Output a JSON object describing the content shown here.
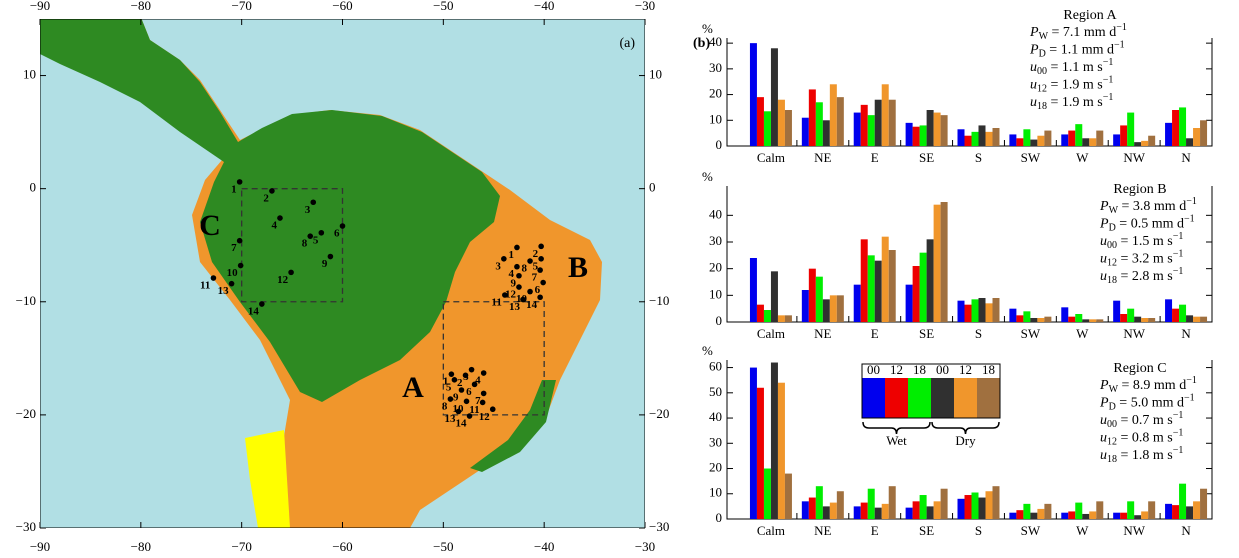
{
  "map": {
    "panel_label": "(a)",
    "xlim": [
      -90,
      -30
    ],
    "ylim": [
      -30,
      15
    ],
    "xticks": [
      {
        "value": -90,
        "label": "−90"
      },
      {
        "value": -80,
        "label": "−80"
      },
      {
        "value": -70,
        "label": "−70"
      },
      {
        "value": -60,
        "label": "−60"
      },
      {
        "value": -50,
        "label": "−50"
      },
      {
        "value": -40,
        "label": "−40"
      },
      {
        "value": -30,
        "label": "−30"
      }
    ],
    "yticks": [
      10,
      0,
      {
        "value": -10,
        "label": "−10"
      },
      {
        "value": -20,
        "label": "−20"
      },
      {
        "value": -30,
        "label": "−30"
      }
    ],
    "region_labels": [
      "A",
      "B",
      "C"
    ],
    "boxes": [
      {
        "lon": [
          -50,
          -40
        ],
        "lat": [
          -20,
          -10
        ]
      },
      {
        "lon": [
          -70,
          -60
        ],
        "lat": [
          -10,
          0
        ]
      }
    ],
    "stations": [
      [
        {
          "n": 1,
          "lon": -49.2,
          "lat": -16.4
        },
        {
          "n": 2,
          "lon": -47.8,
          "lat": -16.5
        },
        {
          "n": 3,
          "lon": -47.2,
          "lat": -16.0
        },
        {
          "n": 4,
          "lon": -46.0,
          "lat": -16.3
        },
        {
          "n": 5,
          "lon": -48.9,
          "lat": -16.9
        },
        {
          "n": 6,
          "lon": -46.9,
          "lat": -17.3
        },
        {
          "n": 7,
          "lon": -46.0,
          "lat": -18.1
        },
        {
          "n": 8,
          "lon": -49.3,
          "lat": -18.6
        },
        {
          "n": 9,
          "lon": -48.2,
          "lat": -17.8
        },
        {
          "n": 10,
          "lon": -47.7,
          "lat": -18.8
        },
        {
          "n": 11,
          "lon": -46.1,
          "lat": -18.9
        },
        {
          "n": 12,
          "lon": -45.1,
          "lat": -19.5
        },
        {
          "n": 13,
          "lon": -48.5,
          "lat": -19.7
        },
        {
          "n": 14,
          "lon": -47.4,
          "lat": -20.1
        }
      ],
      [
        {
          "n": 1,
          "lon": -42.7,
          "lat": -5.2
        },
        {
          "n": 2,
          "lon": -40.3,
          "lat": -5.1
        },
        {
          "n": 3,
          "lon": -44.0,
          "lat": -6.2
        },
        {
          "n": 4,
          "lon": -42.7,
          "lat": -6.9
        },
        {
          "n": 5,
          "lon": -40.3,
          "lat": -6.2
        },
        {
          "n": 6,
          "lon": -40.1,
          "lat": -8.3
        },
        {
          "n": 7,
          "lon": -40.4,
          "lat": -7.2
        },
        {
          "n": 8,
          "lon": -41.4,
          "lat": -6.4
        },
        {
          "n": 9,
          "lon": -42.5,
          "lat": -7.7
        },
        {
          "n": 10,
          "lon": -41.4,
          "lat": -9.1
        },
        {
          "n": 11,
          "lon": -43.9,
          "lat": -9.4
        },
        {
          "n": 12,
          "lon": -42.5,
          "lat": -8.7
        },
        {
          "n": 13,
          "lon": -42.1,
          "lat": -9.8
        },
        {
          "n": 14,
          "lon": -40.4,
          "lat": -9.6
        }
      ],
      [
        {
          "n": 1,
          "lon": -70.2,
          "lat": 0.6
        },
        {
          "n": 2,
          "lon": -67.0,
          "lat": -0.2
        },
        {
          "n": 3,
          "lon": -62.9,
          "lat": -1.2
        },
        {
          "n": 4,
          "lon": -66.2,
          "lat": -2.6
        },
        {
          "n": 5,
          "lon": -62.1,
          "lat": -3.9
        },
        {
          "n": 6,
          "lon": -60.0,
          "lat": -3.3
        },
        {
          "n": 7,
          "lon": -70.2,
          "lat": -4.6
        },
        {
          "n": 8,
          "lon": -63.2,
          "lat": -4.2
        },
        {
          "n": 9,
          "lon": -61.2,
          "lat": -6.0
        },
        {
          "n": 10,
          "lon": -70.1,
          "lat": -6.8
        },
        {
          "n": 11,
          "lon": -72.8,
          "lat": -7.9
        },
        {
          "n": 12,
          "lon": -65.1,
          "lat": -7.4
        },
        {
          "n": 13,
          "lon": -71.0,
          "lat": -8.4
        },
        {
          "n": 14,
          "lon": -68.0,
          "lat": -10.2
        }
      ]
    ]
  },
  "panel_b_label": "(b)",
  "chart_data": [
    {
      "type": "bar",
      "title": "Region A",
      "ylabel": "%",
      "stats": [
        {
          "symbol": "P",
          "sub": "W",
          "text": " = 7.1 mm d",
          "sup": "−1"
        },
        {
          "symbol": "P",
          "sub": "D",
          "text": " = 1.1 mm d",
          "sup": "−1"
        },
        {
          "symbol": "u",
          "sub": "00",
          "text": " = 1.1 m s",
          "sup": "−1"
        },
        {
          "symbol": "u",
          "sub": "12",
          "text": " = 1.9 m s",
          "sup": "−1"
        },
        {
          "symbol": "u",
          "sub": "18",
          "text": " = 1.9 m s",
          "sup": "−1"
        }
      ],
      "categories": [
        "Calm",
        "NE",
        "E",
        "SE",
        "S",
        "SW",
        "W",
        "NW",
        "N"
      ],
      "ylim": [
        0,
        42
      ],
      "yticks": [
        0,
        10,
        20,
        30,
        40
      ],
      "series": [
        {
          "name": "00",
          "group": "Wet",
          "color": "#0000ee",
          "values": [
            40,
            11,
            13,
            9,
            6.5,
            4.5,
            4.5,
            4.5,
            9
          ]
        },
        {
          "name": "12",
          "group": "Wet",
          "color": "#ee0000",
          "values": [
            19,
            22,
            16,
            7.5,
            4,
            3,
            6,
            8,
            14
          ]
        },
        {
          "name": "18",
          "group": "Wet",
          "color": "#00ee00",
          "values": [
            13.5,
            17,
            12,
            8,
            5.5,
            6.5,
            8.5,
            13,
            15
          ]
        },
        {
          "name": "00",
          "group": "Dry",
          "color": "#303030",
          "values": [
            38,
            10,
            18,
            14,
            8,
            2.5,
            3,
            1.5,
            3
          ]
        },
        {
          "name": "12",
          "group": "Dry",
          "color": "#f0962c",
          "values": [
            18,
            24,
            24,
            13,
            5.5,
            4,
            3,
            2,
            7
          ]
        },
        {
          "name": "18",
          "group": "Dry",
          "color": "#a0703f",
          "values": [
            14,
            19,
            18,
            12,
            7,
            6,
            6,
            4,
            10
          ]
        }
      ]
    },
    {
      "type": "bar",
      "title": "Region B",
      "ylabel": "%",
      "stats": [
        {
          "symbol": "P",
          "sub": "W",
          "text": " = 3.8 mm d",
          "sup": "−1"
        },
        {
          "symbol": "P",
          "sub": "D",
          "text": " = 0.5 mm d",
          "sup": "−1"
        },
        {
          "symbol": "u",
          "sub": "00",
          "text": " = 1.5 m s",
          "sup": "−1"
        },
        {
          "symbol": "u",
          "sub": "12",
          "text": " = 3.2 m s",
          "sup": "−1"
        },
        {
          "symbol": "u",
          "sub": "18",
          "text": " = 2.8 m s",
          "sup": "−1"
        }
      ],
      "categories": [
        "Calm",
        "NE",
        "E",
        "SE",
        "S",
        "SW",
        "W",
        "NW",
        "N"
      ],
      "ylim": [
        0,
        51
      ],
      "yticks": [
        0,
        10,
        20,
        30,
        40
      ],
      "series": [
        {
          "name": "00",
          "group": "Wet",
          "color": "#0000ee",
          "values": [
            24,
            12,
            14,
            14,
            8,
            5,
            5.5,
            8,
            8.5
          ]
        },
        {
          "name": "12",
          "group": "Wet",
          "color": "#ee0000",
          "values": [
            6.5,
            20,
            31,
            21,
            6.5,
            2.5,
            2,
            3,
            5
          ]
        },
        {
          "name": "18",
          "group": "Wet",
          "color": "#00ee00",
          "values": [
            4.5,
            17,
            25,
            26,
            8.5,
            4,
            3,
            5,
            6.5
          ]
        },
        {
          "name": "00",
          "group": "Dry",
          "color": "#303030",
          "values": [
            19,
            8.5,
            23,
            31,
            9,
            1.5,
            1,
            2,
            2.5
          ]
        },
        {
          "name": "12",
          "group": "Dry",
          "color": "#f0962c",
          "values": [
            2.5,
            10,
            32,
            44,
            7,
            1.5,
            1,
            1.5,
            2
          ]
        },
        {
          "name": "18",
          "group": "Dry",
          "color": "#a0703f",
          "values": [
            2.5,
            10,
            27,
            45,
            9,
            2,
            1,
            1.5,
            2
          ]
        }
      ]
    },
    {
      "type": "bar",
      "title": "Region C",
      "ylabel": "%",
      "legend": "center",
      "stats": [
        {
          "symbol": "P",
          "sub": "W",
          "text": " = 8.9 mm d",
          "sup": "−1"
        },
        {
          "symbol": "P",
          "sub": "D",
          "text": " = 5.0 mm d",
          "sup": "−1"
        },
        {
          "symbol": "u",
          "sub": "00",
          "text": " = 0.7 m s",
          "sup": "−1"
        },
        {
          "symbol": "u",
          "sub": "12",
          "text": " = 0.8 m s",
          "sup": "−1"
        },
        {
          "symbol": "u",
          "sub": "18",
          "text": " = 1.8 m s",
          "sup": "−1"
        }
      ],
      "categories": [
        "Calm",
        "NE",
        "E",
        "SE",
        "S",
        "SW",
        "W",
        "NW",
        "N"
      ],
      "ylim": [
        0,
        63
      ],
      "yticks": [
        0,
        10,
        20,
        30,
        40,
        50,
        60
      ],
      "series": [
        {
          "name": "00",
          "group": "Wet",
          "color": "#0000ee",
          "values": [
            60,
            7,
            5,
            4.5,
            8,
            2.5,
            2.5,
            2.5,
            6
          ]
        },
        {
          "name": "12",
          "group": "Wet",
          "color": "#ee0000",
          "values": [
            52,
            8.5,
            6.5,
            7,
            9.5,
            3.5,
            3,
            2.5,
            5.5
          ]
        },
        {
          "name": "18",
          "group": "Wet",
          "color": "#00ee00",
          "values": [
            20,
            13,
            12,
            9.5,
            10.5,
            6,
            6.5,
            7,
            14
          ]
        },
        {
          "name": "00",
          "group": "Dry",
          "color": "#303030",
          "values": [
            62,
            5,
            4.5,
            5,
            8.5,
            2.5,
            2,
            1.5,
            5
          ]
        },
        {
          "name": "12",
          "group": "Dry",
          "color": "#f0962c",
          "values": [
            54,
            6.5,
            6,
            7,
            11,
            4,
            3,
            3,
            7
          ]
        },
        {
          "name": "18",
          "group": "Dry",
          "color": "#a0703f",
          "values": [
            18,
            11,
            13,
            12,
            13,
            6,
            7,
            7,
            12
          ]
        }
      ]
    }
  ]
}
